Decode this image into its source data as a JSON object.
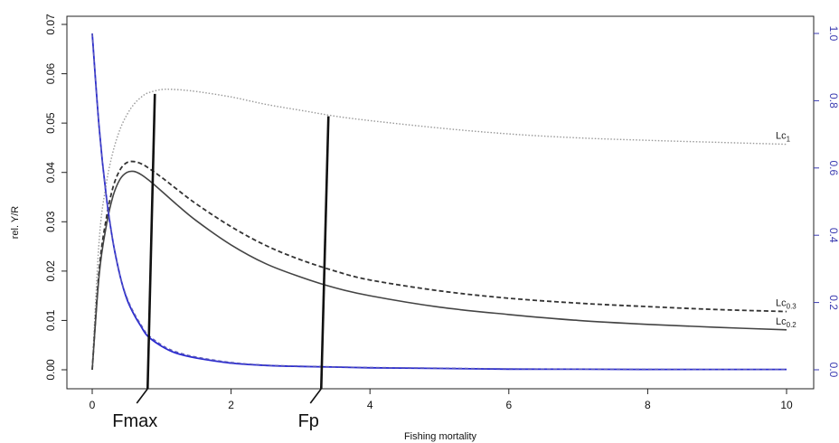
{
  "chart_data": {
    "type": "line",
    "xlabel": "Fishing mortality",
    "ylabel": "rel. Y/R",
    "xlim": [
      0,
      10
    ],
    "ylim": [
      0,
      0.07
    ],
    "y2lim": [
      0,
      1.0
    ],
    "x_ticks": [
      "0",
      "2",
      "4",
      "6",
      "8",
      "10"
    ],
    "y_ticks": [
      "0.00",
      "0.01",
      "0.02",
      "0.03",
      "0.04",
      "0.05",
      "0.06",
      "0.07"
    ],
    "y2_ticks": [
      "0.0",
      "0.2",
      "0.4",
      "0.6",
      "0.8",
      "1.0"
    ],
    "x": [
      0,
      0.1,
      0.2,
      0.3,
      0.4,
      0.5,
      0.6,
      0.7,
      0.8,
      1.0,
      1.2,
      1.5,
      2.0,
      2.5,
      3.0,
      3.5,
      4.0,
      5.0,
      6.0,
      7.0,
      8.0,
      9.0,
      10.0
    ],
    "series": [
      {
        "name": "Lc",
        "sub": "1",
        "axis": "left",
        "style": "dotted-grey",
        "color": "#9a9a9a",
        "values": [
          0,
          0.0262,
          0.0375,
          0.0442,
          0.0487,
          0.0517,
          0.0538,
          0.0552,
          0.0561,
          0.0568,
          0.0568,
          0.0564,
          0.0553,
          0.0538,
          0.0526,
          0.0514,
          0.0505,
          0.049,
          0.0478,
          0.047,
          0.0465,
          0.0461,
          0.0457
        ]
      },
      {
        "name": "Lc",
        "sub": "0.3",
        "axis": "left",
        "style": "dashed",
        "color": "#333333",
        "values": [
          0,
          0.0202,
          0.0305,
          0.037,
          0.0405,
          0.042,
          0.0422,
          0.0418,
          0.041,
          0.039,
          0.0368,
          0.0336,
          0.029,
          0.0252,
          0.0223,
          0.02,
          0.0182,
          0.016,
          0.0145,
          0.0135,
          0.0128,
          0.0122,
          0.0118
        ]
      },
      {
        "name": "Lc",
        "sub": "0.2",
        "axis": "left",
        "style": "solid",
        "color": "#444444",
        "values": [
          0,
          0.0192,
          0.029,
          0.0352,
          0.0386,
          0.04,
          0.0402,
          0.0396,
          0.0386,
          0.0362,
          0.0337,
          0.0302,
          0.0253,
          0.0215,
          0.0188,
          0.0166,
          0.015,
          0.0127,
          0.0112,
          0.01,
          0.0092,
          0.0086,
          0.0081
        ]
      },
      {
        "name": "",
        "axis": "right",
        "style": "solid-blue",
        "color": "#2a2ad0",
        "values": [
          1.0,
          0.72,
          0.52,
          0.38,
          0.28,
          0.21,
          0.165,
          0.13,
          0.1,
          0.07,
          0.05,
          0.035,
          0.02,
          0.013,
          0.01,
          0.008,
          0.006,
          0.004,
          0.002,
          0.0015,
          0.001,
          0.001,
          0.001
        ]
      },
      {
        "name": "",
        "axis": "right",
        "style": "dashed-blue",
        "color": "#5a5ab8",
        "values": [
          1.0,
          0.72,
          0.52,
          0.38,
          0.28,
          0.215,
          0.17,
          0.135,
          0.105,
          0.074,
          0.054,
          0.038,
          0.022,
          0.014,
          0.011,
          0.009,
          0.007,
          0.005,
          0.003,
          0.002,
          0.0015,
          0.001,
          0.001
        ]
      }
    ],
    "reference_lines": [
      {
        "label": "Fmax",
        "x": 0.85
      },
      {
        "label": "Fp",
        "x": 3.35
      }
    ],
    "grid": false,
    "legend": "none"
  }
}
